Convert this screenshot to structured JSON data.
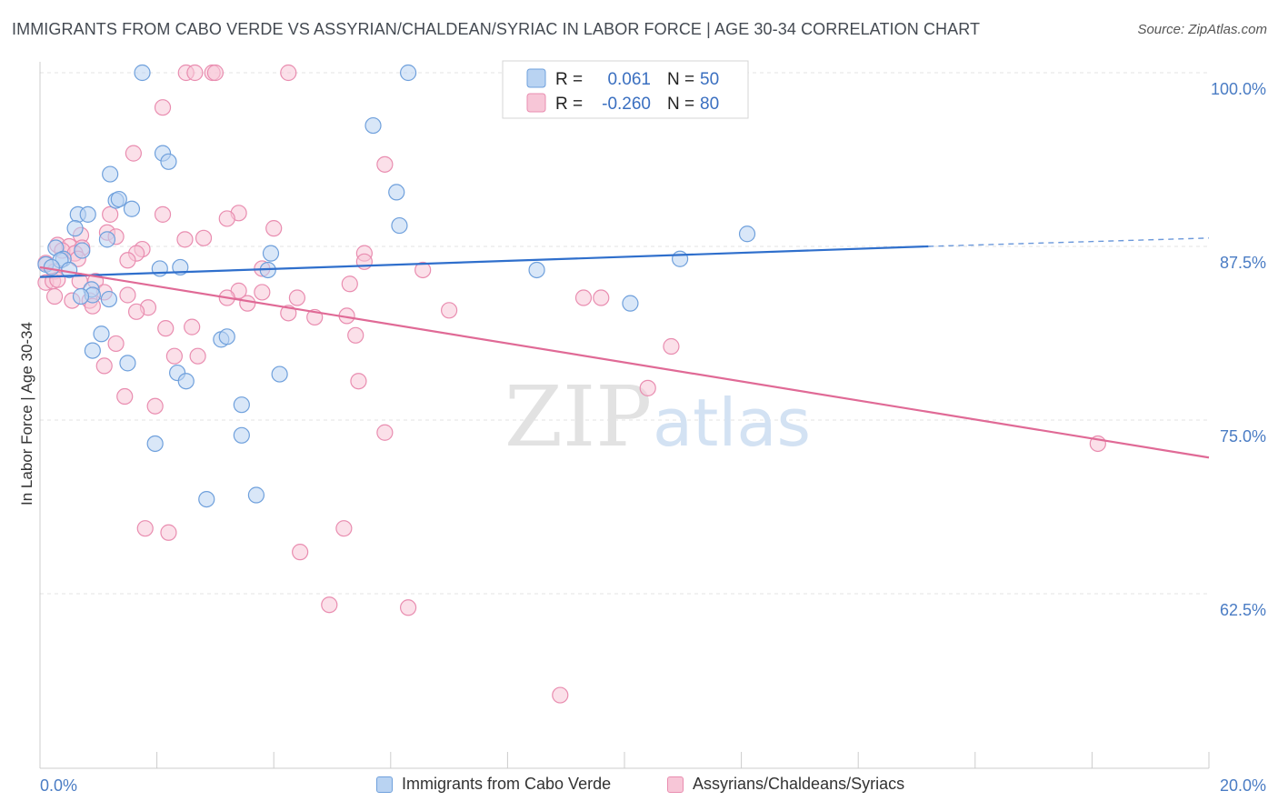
{
  "title": "IMMIGRANTS FROM CABO VERDE VS ASSYRIAN/CHALDEAN/SYRIAC IN LABOR FORCE | AGE 30-34 CORRELATION CHART",
  "source": "Source: ZipAtlas.com",
  "watermark": {
    "zip": "ZIP",
    "atlas": "atlas"
  },
  "colors": {
    "blue_fill": "#b9d3f2",
    "blue_stroke": "#6fa0dc",
    "blue_line": "#2f6fcc",
    "pink_fill": "#f7c6d7",
    "pink_stroke": "#e98db0",
    "pink_line": "#e06a96",
    "axis_text": "#4a7cc4",
    "grid": "#e3e3e3"
  },
  "legend_box": {
    "series1": {
      "r_label": "R =",
      "r_value": "0.061",
      "n_label": "N =",
      "n_value": "50"
    },
    "series2": {
      "r_label": "R =",
      "r_value": "-0.260",
      "n_label": "N =",
      "n_value": "80"
    }
  },
  "chart_data": {
    "type": "scatter",
    "title": "IMMIGRANTS FROM CABO VERDE VS ASSYRIAN/CHALDEAN/SYRIAC IN LABOR FORCE | AGE 30-34 CORRELATION CHART",
    "xlabel": "",
    "ylabel": "In Labor Force | Age 30-34",
    "xlim": [
      0,
      20
    ],
    "ylim": [
      50,
      100
    ],
    "x_tick_labels": [
      "0.0%",
      "20.0%"
    ],
    "y_ticks": [
      62.5,
      75.0,
      87.5,
      100.0
    ],
    "y_tick_labels": [
      "62.5%",
      "75.0%",
      "87.5%",
      "100.0%"
    ],
    "grid": true,
    "legend_position": "top-center",
    "series": [
      {
        "name": "Immigrants from Cabo Verde",
        "R": 0.061,
        "N": 50,
        "trend": {
          "x": [
            0,
            15.2
          ],
          "y": [
            85.3,
            87.5
          ],
          "dashed_to": [
            20,
            88.1
          ]
        },
        "points": [
          [
            1.75,
            100
          ],
          [
            6.3,
            100
          ],
          [
            5.7,
            96.2
          ],
          [
            1.2,
            92.7
          ],
          [
            2.1,
            94.2
          ],
          [
            2.2,
            93.6
          ],
          [
            1.3,
            90.8
          ],
          [
            1.35,
            90.9
          ],
          [
            1.57,
            90.2
          ],
          [
            0.65,
            89.8
          ],
          [
            0.82,
            89.8
          ],
          [
            0.6,
            88.8
          ],
          [
            6.15,
            89.0
          ],
          [
            6.1,
            91.4
          ],
          [
            12.1,
            88.4
          ],
          [
            1.15,
            88.0
          ],
          [
            0.27,
            87.4
          ],
          [
            0.72,
            87.2
          ],
          [
            0.4,
            86.6
          ],
          [
            0.1,
            86.2
          ],
          [
            0.35,
            86.5
          ],
          [
            0.2,
            86.0
          ],
          [
            0.5,
            85.8
          ],
          [
            3.95,
            87.0
          ],
          [
            10.95,
            86.6
          ],
          [
            2.4,
            86.0
          ],
          [
            2.05,
            85.9
          ],
          [
            3.9,
            85.8
          ],
          [
            0.88,
            84.4
          ],
          [
            0.9,
            84.0
          ],
          [
            0.7,
            83.9
          ],
          [
            1.18,
            83.7
          ],
          [
            8.5,
            85.8
          ],
          [
            10.1,
            83.4
          ],
          [
            1.05,
            81.2
          ],
          [
            0.9,
            80.0
          ],
          [
            3.1,
            80.8
          ],
          [
            3.2,
            81.0
          ],
          [
            1.5,
            79.1
          ],
          [
            2.35,
            78.4
          ],
          [
            2.5,
            77.8
          ],
          [
            4.1,
            78.3
          ],
          [
            3.45,
            76.1
          ],
          [
            3.45,
            73.9
          ],
          [
            1.97,
            73.3
          ],
          [
            2.85,
            69.3
          ],
          [
            3.7,
            69.6
          ]
        ]
      },
      {
        "name": "Assyrians/Chaldeans/Syriacs",
        "R": -0.26,
        "N": 80,
        "trend": {
          "x": [
            0,
            20
          ],
          "y": [
            86.0,
            72.3
          ]
        },
        "points": [
          [
            2.5,
            100
          ],
          [
            2.65,
            100
          ],
          [
            2.95,
            100
          ],
          [
            3.0,
            100
          ],
          [
            4.25,
            100
          ],
          [
            2.1,
            97.5
          ],
          [
            1.6,
            94.2
          ],
          [
            5.9,
            93.4
          ],
          [
            2.1,
            89.8
          ],
          [
            1.2,
            89.8
          ],
          [
            3.4,
            89.9
          ],
          [
            3.2,
            89.5
          ],
          [
            4.0,
            88.8
          ],
          [
            1.15,
            88.5
          ],
          [
            0.7,
            88.3
          ],
          [
            2.48,
            88.0
          ],
          [
            2.8,
            88.1
          ],
          [
            1.3,
            88.2
          ],
          [
            0.3,
            87.6
          ],
          [
            0.5,
            87.5
          ],
          [
            0.72,
            87.4
          ],
          [
            0.38,
            87.2
          ],
          [
            1.75,
            87.3
          ],
          [
            1.65,
            87.0
          ],
          [
            0.6,
            87.0
          ],
          [
            5.55,
            87.0
          ],
          [
            5.55,
            86.4
          ],
          [
            0.65,
            86.6
          ],
          [
            1.5,
            86.5
          ],
          [
            0.1,
            86.3
          ],
          [
            0.25,
            85.7
          ],
          [
            0.1,
            84.9
          ],
          [
            0.22,
            85.0
          ],
          [
            0.3,
            85.1
          ],
          [
            0.68,
            85.0
          ],
          [
            0.95,
            85.0
          ],
          [
            3.8,
            85.9
          ],
          [
            6.55,
            85.8
          ],
          [
            5.3,
            84.8
          ],
          [
            3.4,
            84.3
          ],
          [
            3.8,
            84.2
          ],
          [
            1.1,
            84.2
          ],
          [
            0.25,
            83.9
          ],
          [
            0.55,
            83.6
          ],
          [
            0.85,
            83.6
          ],
          [
            1.5,
            84.0
          ],
          [
            3.2,
            83.8
          ],
          [
            4.4,
            83.8
          ],
          [
            3.55,
            83.4
          ],
          [
            0.9,
            83.2
          ],
          [
            1.85,
            83.1
          ],
          [
            1.65,
            82.8
          ],
          [
            4.25,
            82.7
          ],
          [
            4.7,
            82.4
          ],
          [
            5.25,
            82.5
          ],
          [
            7.0,
            82.9
          ],
          [
            9.3,
            83.8
          ],
          [
            9.6,
            83.8
          ],
          [
            2.15,
            81.6
          ],
          [
            2.6,
            81.7
          ],
          [
            5.4,
            81.1
          ],
          [
            1.3,
            80.5
          ],
          [
            2.3,
            79.6
          ],
          [
            2.7,
            79.6
          ],
          [
            1.1,
            78.9
          ],
          [
            5.45,
            77.8
          ],
          [
            10.8,
            80.3
          ],
          [
            1.45,
            76.7
          ],
          [
            1.97,
            76.0
          ],
          [
            10.4,
            77.3
          ],
          [
            5.9,
            74.1
          ],
          [
            18.1,
            73.3
          ],
          [
            1.8,
            67.2
          ],
          [
            2.2,
            66.9
          ],
          [
            5.2,
            67.2
          ],
          [
            4.45,
            65.5
          ],
          [
            4.95,
            61.7
          ],
          [
            6.3,
            61.5
          ],
          [
            8.9,
            55.2
          ]
        ]
      }
    ]
  }
}
